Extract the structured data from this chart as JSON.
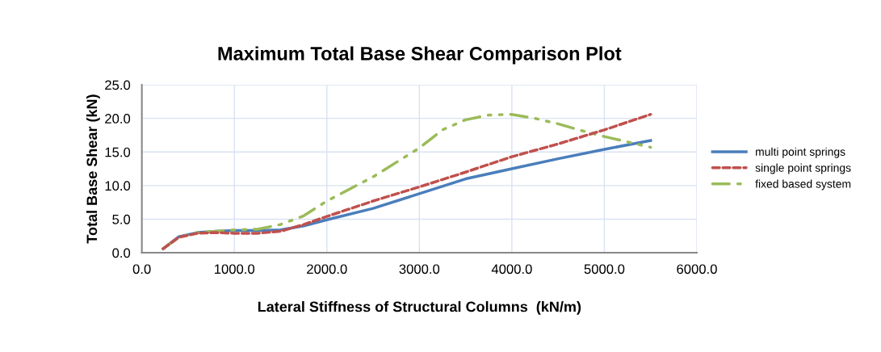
{
  "chart_data": {
    "type": "line",
    "title": "Maximum Total Base Shear Comparison Plot",
    "xlabel": "Lateral Stiffness of Structural Columns  (kN/m)",
    "ylabel": "Total Base Shear (kN)",
    "series": [
      {
        "name": "multi point springs",
        "color": "#4a7ebb",
        "line_style": "solid",
        "x": [
          230,
          400,
          600,
          800,
          1000,
          1250,
          1500,
          1750,
          2000,
          2500,
          3000,
          3500,
          4000,
          4500,
          5000,
          5500
        ],
        "values": [
          0.6,
          2.4,
          3.0,
          3.2,
          3.3,
          3.3,
          3.4,
          4.0,
          4.9,
          6.6,
          8.8,
          11.0,
          12.5,
          14.0,
          15.4,
          16.7
        ]
      },
      {
        "name": "single point springs",
        "color": "#c0504d",
        "line_style": "dashed",
        "x": [
          230,
          400,
          600,
          800,
          1000,
          1250,
          1500,
          1750,
          2000,
          2500,
          3000,
          3500,
          4000,
          4500,
          5000,
          5500
        ],
        "values": [
          0.6,
          2.3,
          2.9,
          3.0,
          2.9,
          2.9,
          3.2,
          4.2,
          5.4,
          7.7,
          9.8,
          12.0,
          14.3,
          16.2,
          18.3,
          20.6
        ]
      },
      {
        "name": "fixed based system",
        "color": "#9bbb59",
        "line_style": "dashdot",
        "x": [
          230,
          400,
          600,
          800,
          1000,
          1250,
          1500,
          1750,
          2000,
          2500,
          3000,
          3250,
          3500,
          3750,
          4000,
          4250,
          4500,
          4750,
          5000,
          5250,
          5500
        ],
        "values": [
          0.6,
          2.3,
          3.0,
          3.2,
          3.4,
          3.5,
          4.2,
          5.5,
          7.7,
          11.3,
          15.6,
          18.3,
          19.8,
          20.5,
          20.6,
          20.0,
          19.2,
          18.2,
          17.3,
          16.5,
          15.7
        ]
      }
    ],
    "xlim": [
      0,
      6000
    ],
    "xticks": [
      {
        "value": 0,
        "label": "0.0"
      },
      {
        "value": 1000,
        "label": "1000.0"
      },
      {
        "value": 2000,
        "label": "2000.0"
      },
      {
        "value": 3000,
        "label": "3000.0"
      },
      {
        "value": 4000,
        "label": "4000.0"
      },
      {
        "value": 5000,
        "label": "5000.0"
      },
      {
        "value": 6000,
        "label": "6000.0"
      }
    ],
    "ylim": [
      0,
      25
    ],
    "yticks": [
      {
        "value": 0,
        "label": "0.0"
      },
      {
        "value": 5,
        "label": "5.0"
      },
      {
        "value": 10,
        "label": "10.0"
      },
      {
        "value": 15,
        "label": "15.0"
      },
      {
        "value": 20,
        "label": "20.0"
      },
      {
        "value": 25,
        "label": "25.0"
      }
    ],
    "grid": true,
    "legend": "right"
  }
}
